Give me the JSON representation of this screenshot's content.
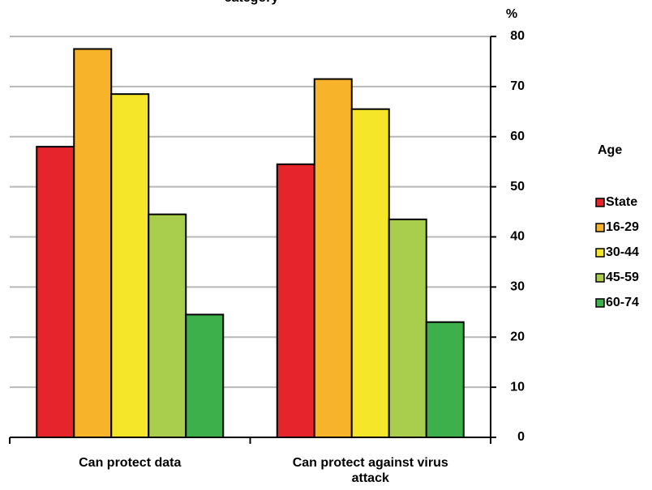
{
  "chart_data": {
    "type": "bar",
    "title": "category",
    "y_axis_label": "%",
    "legend_title": "Age",
    "categories": [
      "Can protect data",
      "Can protect against virus attack"
    ],
    "series": [
      {
        "name": "State",
        "color": "#e5242c",
        "values": [
          58,
          54.5
        ]
      },
      {
        "name": "16-29",
        "color": "#f7b42b",
        "values": [
          77.5,
          71.5
        ]
      },
      {
        "name": "30-44",
        "color": "#f5e62a",
        "values": [
          68.5,
          65.5
        ]
      },
      {
        "name": "45-59",
        "color": "#a9cd4c",
        "values": [
          44.5,
          43.5
        ]
      },
      {
        "name": "60-74",
        "color": "#3daf4b",
        "values": [
          24.5,
          23
        ]
      }
    ],
    "ylim": [
      0,
      80
    ],
    "yticks": [
      0,
      10,
      20,
      30,
      40,
      50,
      60,
      70,
      80
    ],
    "grid": true,
    "legend": "right"
  }
}
